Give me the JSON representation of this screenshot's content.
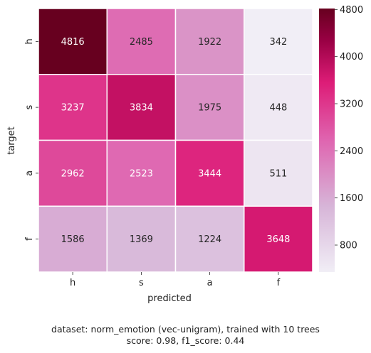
{
  "chart_data": {
    "type": "heatmap",
    "xlabel": "predicted",
    "ylabel": "target",
    "x_categories": [
      "h",
      "s",
      "a",
      "f"
    ],
    "y_categories": [
      "h",
      "s",
      "a",
      "f"
    ],
    "values": [
      [
        4816,
        2485,
        1922,
        342
      ],
      [
        3237,
        3834,
        1975,
        448
      ],
      [
        2962,
        2523,
        3444,
        511
      ],
      [
        1586,
        1369,
        1224,
        3648
      ]
    ],
    "colorbar": {
      "range": [
        342,
        4816
      ],
      "ticks": [
        800,
        1600,
        2400,
        3200,
        4000,
        4800
      ],
      "colormap": [
        "#f1eef6",
        "#d7b5d8",
        "#df65b0",
        "#dd1c77",
        "#980043",
        "#67001f"
      ]
    },
    "grid_color": "#ffffff"
  },
  "caption": {
    "line1": "dataset: norm_emotion (vec-unigram), trained with 10 trees",
    "line2": "score: 0.98, f1_score: 0.44"
  }
}
